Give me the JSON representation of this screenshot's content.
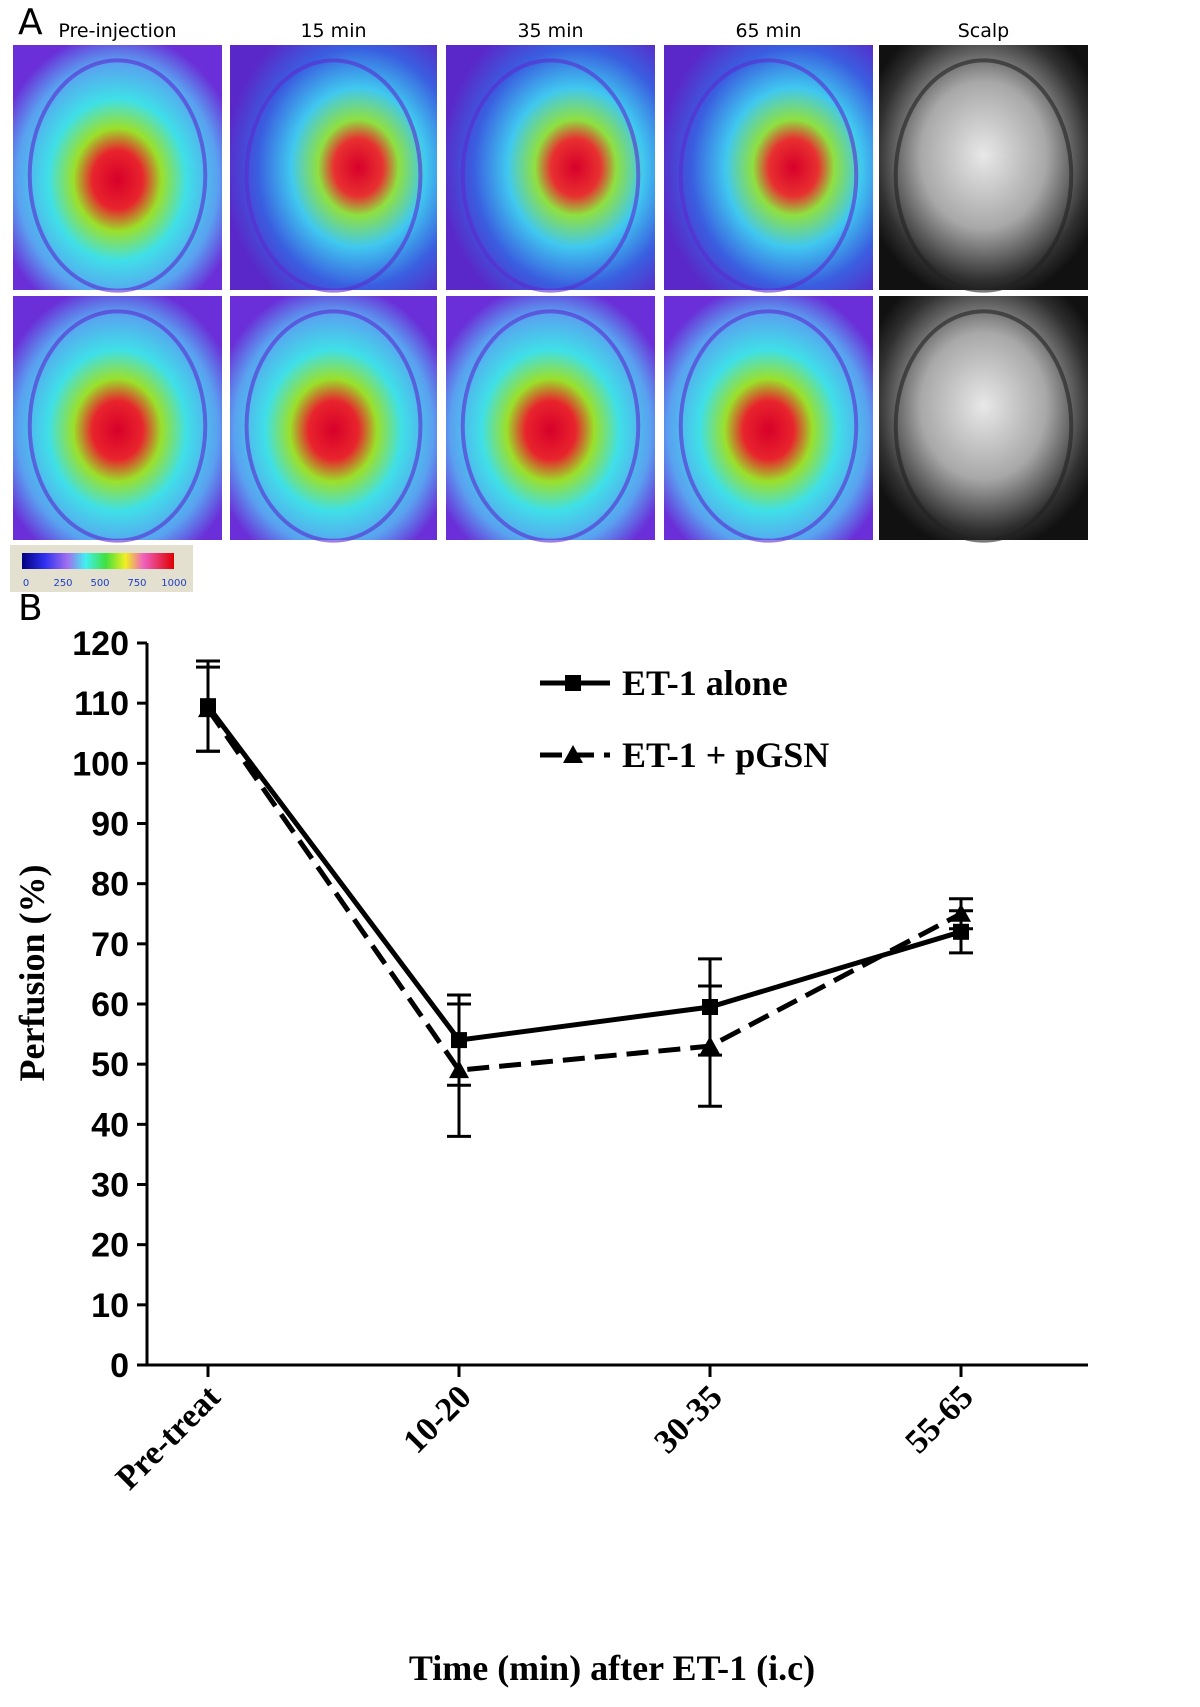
{
  "panel_a": {
    "label": "A",
    "column_titles": [
      "Pre-injection",
      "15 min",
      "35 min",
      "65 min",
      "Scalp"
    ],
    "scale_labels": [
      0,
      250,
      500,
      750,
      1000
    ]
  },
  "chart_data": {
    "type": "line",
    "panel_label": "B",
    "x_label": "Time (min) after ET-1 (i.c)",
    "y_label": "Perfusion (%)",
    "categories": [
      "Pre-treat",
      "10-20",
      "30-35",
      "55-65"
    ],
    "series": [
      {
        "name": "ET-1 alone",
        "color": "#000000",
        "dash": false,
        "marker": "square",
        "values": [
          109.5,
          54,
          59.5,
          72
        ],
        "errors": [
          7.5,
          7.5,
          8,
          3.5
        ]
      },
      {
        "name": "ET-1 + pGSN",
        "color": "#000000",
        "dash": true,
        "marker": "triangle",
        "values": [
          109,
          49,
          53,
          75
        ],
        "errors": [
          7,
          11,
          10,
          2.5
        ]
      }
    ],
    "ylim": [
      0,
      120
    ],
    "yticks": [
      0,
      10,
      20,
      30,
      40,
      50,
      60,
      70,
      80,
      90,
      100,
      110,
      120
    ],
    "legend": "upper right"
  }
}
